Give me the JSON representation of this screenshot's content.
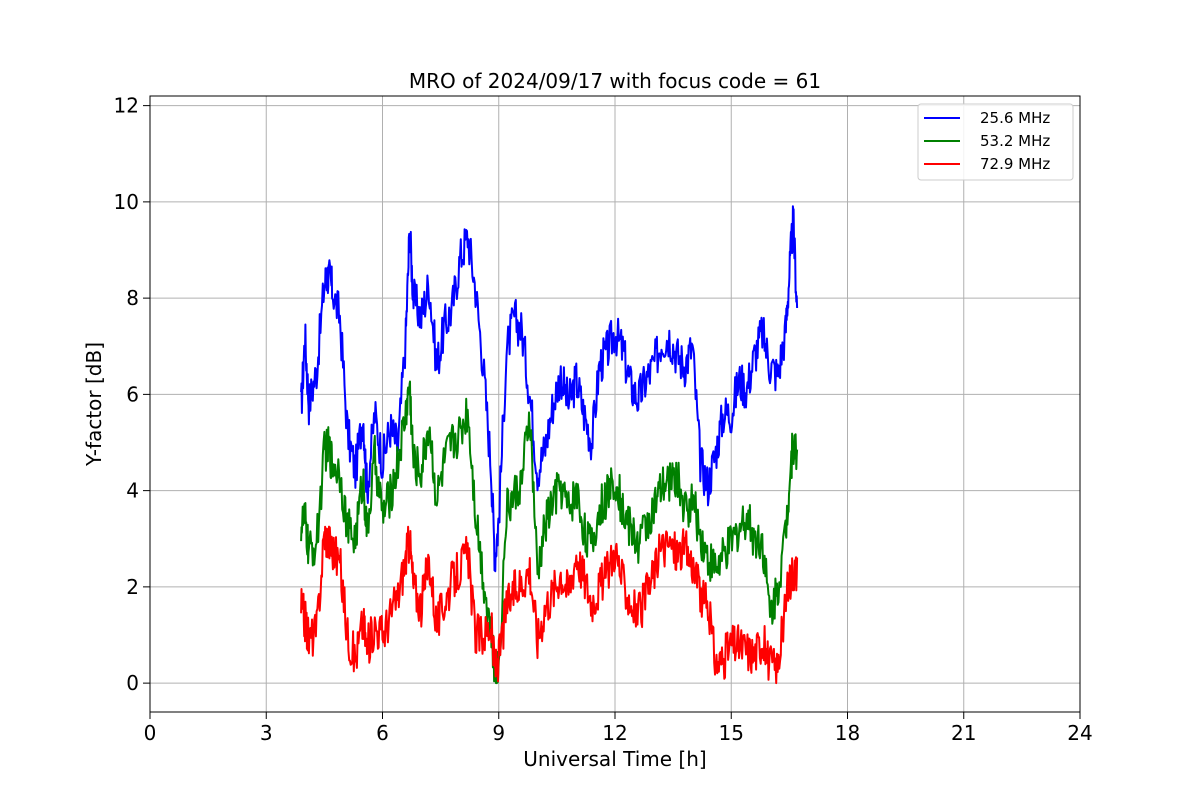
{
  "chart_data": {
    "type": "line",
    "title": "MRO of 2024/09/17 with focus code = 61",
    "xlabel": "Universal Time [h]",
    "ylabel": "Y-factor [dB]",
    "xlim": [
      0,
      24
    ],
    "ylim": [
      -0.6,
      12.2
    ],
    "xticks": [
      0,
      3,
      6,
      9,
      12,
      15,
      18,
      21,
      24
    ],
    "yticks": [
      0,
      2,
      4,
      6,
      8,
      10,
      12
    ],
    "grid": true,
    "legend_position": "top-right",
    "series": [
      {
        "name": "25.6 MHz",
        "color": "#0000ff",
        "x": [
          3.9,
          4.0,
          4.1,
          4.3,
          4.5,
          4.6,
          4.7,
          4.9,
          5.1,
          5.3,
          5.5,
          5.6,
          5.8,
          6.0,
          6.2,
          6.4,
          6.6,
          6.7,
          6.8,
          7.0,
          7.2,
          7.4,
          7.6,
          7.8,
          8.0,
          8.2,
          8.4,
          8.6,
          8.8,
          8.9,
          9.0,
          9.2,
          9.4,
          9.6,
          9.8,
          10.0,
          10.2,
          10.4,
          10.6,
          10.8,
          11.0,
          11.2,
          11.4,
          11.6,
          11.8,
          12.0,
          12.2,
          12.4,
          12.6,
          12.8,
          13.0,
          13.2,
          13.4,
          13.6,
          13.8,
          14.0,
          14.2,
          14.4,
          14.6,
          14.8,
          15.0,
          15.2,
          15.4,
          15.6,
          15.8,
          16.0,
          16.2,
          16.4,
          16.5,
          16.6,
          16.7
        ],
        "y": [
          5.7,
          7.2,
          5.8,
          6.5,
          8.3,
          8.5,
          8.2,
          7.6,
          5.2,
          4.4,
          5.6,
          4.0,
          5.6,
          4.6,
          5.3,
          4.9,
          7.2,
          9.4,
          8.0,
          7.6,
          8.3,
          6.6,
          7.4,
          7.8,
          8.8,
          9.3,
          8.2,
          6.6,
          4.5,
          2.6,
          3.4,
          6.9,
          7.6,
          7.3,
          6.0,
          4.4,
          4.9,
          5.8,
          6.4,
          5.8,
          6.3,
          5.6,
          5.0,
          6.6,
          6.9,
          7.3,
          6.9,
          6.2,
          5.9,
          6.3,
          6.6,
          7.1,
          7.2,
          6.8,
          6.6,
          7.0,
          4.6,
          4.1,
          4.8,
          5.6,
          5.6,
          6.3,
          6.1,
          6.8,
          7.3,
          6.6,
          6.4,
          7.3,
          8.5,
          9.6,
          7.8
        ]
      },
      {
        "name": "53.2 MHz",
        "color": "#008000",
        "x": [
          3.9,
          4.0,
          4.1,
          4.3,
          4.5,
          4.6,
          4.7,
          4.9,
          5.1,
          5.3,
          5.5,
          5.6,
          5.8,
          6.0,
          6.2,
          6.4,
          6.6,
          6.7,
          6.8,
          7.0,
          7.2,
          7.4,
          7.6,
          7.8,
          8.0,
          8.2,
          8.4,
          8.6,
          8.8,
          8.9,
          9.0,
          9.2,
          9.4,
          9.6,
          9.8,
          10.0,
          10.2,
          10.4,
          10.6,
          10.8,
          11.0,
          11.2,
          11.4,
          11.6,
          11.8,
          12.0,
          12.2,
          12.4,
          12.6,
          12.8,
          13.0,
          13.2,
          13.4,
          13.6,
          13.8,
          14.0,
          14.2,
          14.4,
          14.6,
          14.8,
          15.0,
          15.2,
          15.4,
          15.6,
          15.8,
          16.0,
          16.2,
          16.4,
          16.5,
          16.6,
          16.7
        ],
        "y": [
          3.3,
          3.4,
          2.7,
          2.9,
          4.8,
          4.9,
          4.6,
          4.4,
          3.2,
          3.0,
          4.3,
          3.1,
          4.7,
          3.5,
          3.9,
          4.6,
          5.6,
          6.2,
          4.6,
          4.4,
          5.4,
          3.8,
          4.6,
          5.0,
          5.2,
          5.7,
          3.6,
          2.2,
          1.1,
          0.2,
          0.3,
          3.6,
          3.9,
          4.2,
          5.6,
          2.2,
          3.3,
          3.8,
          4.1,
          3.6,
          4.0,
          3.2,
          2.8,
          3.6,
          3.9,
          4.3,
          3.6,
          3.2,
          2.9,
          3.3,
          3.6,
          4.0,
          4.2,
          4.3,
          3.6,
          3.8,
          3.1,
          2.6,
          2.4,
          2.6,
          2.9,
          3.2,
          3.5,
          3.0,
          3.0,
          1.4,
          2.0,
          3.1,
          4.2,
          5.0,
          4.7
        ]
      },
      {
        "name": "72.9 MHz",
        "color": "#ff0000",
        "x": [
          3.9,
          4.0,
          4.1,
          4.3,
          4.5,
          4.6,
          4.7,
          4.9,
          5.1,
          5.3,
          5.5,
          5.6,
          5.8,
          6.0,
          6.2,
          6.4,
          6.6,
          6.7,
          6.8,
          7.0,
          7.2,
          7.4,
          7.6,
          7.8,
          8.0,
          8.2,
          8.4,
          8.6,
          8.8,
          8.9,
          9.0,
          9.2,
          9.4,
          9.6,
          9.8,
          10.0,
          10.2,
          10.4,
          10.6,
          10.8,
          11.0,
          11.2,
          11.4,
          11.6,
          11.8,
          12.0,
          12.2,
          12.4,
          12.6,
          12.8,
          13.0,
          13.2,
          13.4,
          13.6,
          13.8,
          14.0,
          14.2,
          14.4,
          14.6,
          14.8,
          15.0,
          15.2,
          15.4,
          15.6,
          15.8,
          16.0,
          16.2,
          16.4,
          16.5,
          16.6,
          16.7
        ],
        "y": [
          1.6,
          1.3,
          0.9,
          1.1,
          3.1,
          3.0,
          2.8,
          2.5,
          1.0,
          0.5,
          1.3,
          0.7,
          1.2,
          1.0,
          1.4,
          1.8,
          2.6,
          3.0,
          2.0,
          1.6,
          2.6,
          1.2,
          1.7,
          2.1,
          2.4,
          2.7,
          1.0,
          1.0,
          1.2,
          0.3,
          0.5,
          1.6,
          1.9,
          2.1,
          2.4,
          0.9,
          1.6,
          1.9,
          2.3,
          1.9,
          2.7,
          2.2,
          1.7,
          2.0,
          2.3,
          2.8,
          2.1,
          1.7,
          1.4,
          1.8,
          2.3,
          2.8,
          2.9,
          2.7,
          2.8,
          2.5,
          1.8,
          1.6,
          0.4,
          0.5,
          0.8,
          0.8,
          0.7,
          0.6,
          0.9,
          0.4,
          0.3,
          1.6,
          2.1,
          2.4,
          2.3
        ]
      }
    ]
  }
}
